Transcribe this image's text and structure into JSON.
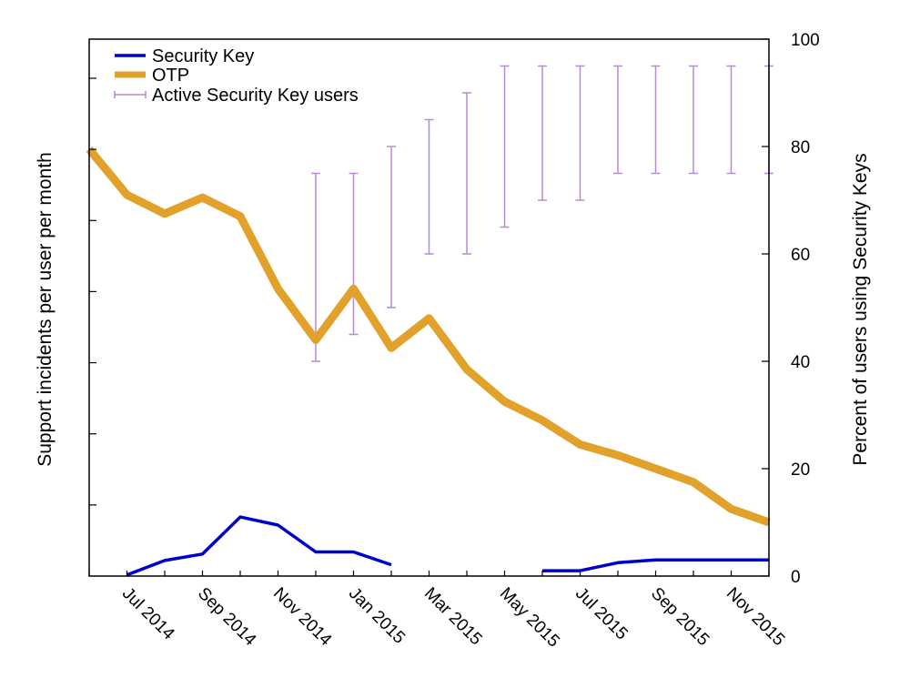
{
  "chart_data": {
    "type": "line",
    "ylabel_left": "Support incidents per user per month",
    "ylabel_right": "Percent of users using Security Keys",
    "y_right_lim": [
      0,
      100
    ],
    "y_right_ticks": [
      0,
      20,
      40,
      60,
      80,
      100
    ],
    "y_left_tick_labels_shown": false,
    "x_tick_labels": [
      "Jul 2014",
      "Sep 2014",
      "Nov 2014",
      "Jan 2015",
      "Mar 2015",
      "May 2015",
      "Jul 2015",
      "Sep 2015",
      "Nov 2015"
    ],
    "x_months": [
      "2014-06",
      "2014-07",
      "2014-08",
      "2014-09",
      "2014-10",
      "2014-11",
      "2014-12",
      "2015-01",
      "2015-02",
      "2015-03",
      "2015-04",
      "2015-05",
      "2015-06",
      "2015-07",
      "2015-08",
      "2015-09",
      "2015-10",
      "2015-11",
      "2015-12"
    ],
    "legend_position": "top-left",
    "grid": false,
    "series": [
      {
        "name": "Security Key",
        "color": "#0000cc",
        "axis": "left",
        "points": [
          {
            "x": "2014-07-01",
            "y": 0.2
          },
          {
            "x": "2014-08-01",
            "y": 2.9
          },
          {
            "x": "2014-09-01",
            "y": 4.1
          },
          {
            "x": "2014-10-01",
            "y": 11.0
          },
          {
            "x": "2014-11-01",
            "y": 9.5
          },
          {
            "x": "2014-12-01",
            "y": 4.5
          },
          {
            "x": "2015-01-01",
            "y": 4.5
          },
          {
            "x": "2015-02-01",
            "y": 2.1
          },
          null,
          {
            "x": "2015-06-01",
            "y": 1.0
          },
          {
            "x": "2015-07-01",
            "y": 1.0
          },
          {
            "x": "2015-08-01",
            "y": 2.5
          },
          {
            "x": "2015-09-01",
            "y": 3.0
          },
          {
            "x": "2015-10-01",
            "y": 3.0
          },
          {
            "x": "2015-11-01",
            "y": 3.0
          },
          {
            "x": "2015-12-01",
            "y": 3.0
          }
        ]
      },
      {
        "name": "OTP",
        "color": "#e1a12a",
        "axis": "left",
        "points": [
          {
            "x": "2014-06-01",
            "y": 79.5
          },
          {
            "x": "2014-07-01",
            "y": 71.0
          },
          {
            "x": "2014-08-01",
            "y": 67.5
          },
          {
            "x": "2014-09-01",
            "y": 70.5
          },
          {
            "x": "2014-10-01",
            "y": 67.0
          },
          {
            "x": "2014-11-01",
            "y": 53.5
          },
          {
            "x": "2014-12-01",
            "y": 44.0
          },
          {
            "x": "2015-01-01",
            "y": 53.5
          },
          {
            "x": "2015-02-01",
            "y": 42.5
          },
          {
            "x": "2015-03-01",
            "y": 48.0
          },
          {
            "x": "2015-04-01",
            "y": 38.5
          },
          {
            "x": "2015-05-01",
            "y": 32.5
          },
          {
            "x": "2015-06-01",
            "y": 29.0
          },
          {
            "x": "2015-07-01",
            "y": 24.5
          },
          {
            "x": "2015-08-01",
            "y": 22.5
          },
          {
            "x": "2015-09-01",
            "y": 20.0
          },
          {
            "x": "2015-10-01",
            "y": 17.5
          },
          {
            "x": "2015-11-01",
            "y": 12.5
          },
          {
            "x": "2015-12-01",
            "y": 10.0
          }
        ]
      },
      {
        "name": "Active Security Key users",
        "color": "#b88ad0",
        "axis": "right",
        "type": "range",
        "points": [
          {
            "x": "2014-12-01",
            "low": 40,
            "high": 75
          },
          {
            "x": "2015-01-01",
            "low": 45,
            "high": 75
          },
          {
            "x": "2015-02-01",
            "low": 50,
            "high": 80
          },
          {
            "x": "2015-03-01",
            "low": 60,
            "high": 85
          },
          {
            "x": "2015-04-01",
            "low": 60,
            "high": 90
          },
          {
            "x": "2015-05-01",
            "low": 65,
            "high": 95
          },
          {
            "x": "2015-06-01",
            "low": 70,
            "high": 95
          },
          {
            "x": "2015-07-01",
            "low": 70,
            "high": 95
          },
          {
            "x": "2015-08-01",
            "low": 75,
            "high": 95
          },
          {
            "x": "2015-09-01",
            "low": 75,
            "high": 95
          },
          {
            "x": "2015-10-01",
            "low": 75,
            "high": 95
          },
          {
            "x": "2015-11-01",
            "low": 75,
            "high": 95
          },
          {
            "x": "2015-12-01",
            "low": 75,
            "high": 95
          }
        ]
      }
    ]
  }
}
